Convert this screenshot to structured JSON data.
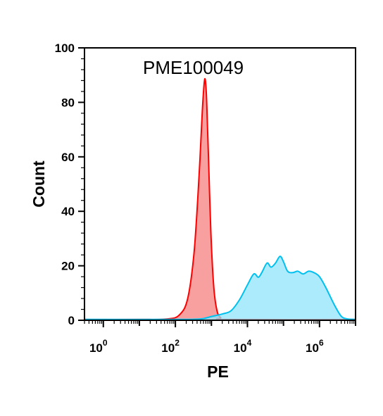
{
  "chart_data": {
    "type": "area",
    "title": "PME100049",
    "xlabel": "PE",
    "ylabel": "Count",
    "x_scale": "log",
    "xlim": [
      0.3,
      10000000
    ],
    "ylim": [
      0,
      100
    ],
    "x_ticks": [
      {
        "value": 1,
        "base": "10",
        "exp": "0"
      },
      {
        "value": 100,
        "base": "10",
        "exp": "2"
      },
      {
        "value": 10000,
        "base": "10",
        "exp": "4"
      },
      {
        "value": 1000000,
        "base": "10",
        "exp": "6"
      }
    ],
    "y_ticks": [
      {
        "value": 0,
        "label": "0"
      },
      {
        "value": 20,
        "label": "20"
      },
      {
        "value": 40,
        "label": "40"
      },
      {
        "value": 60,
        "label": "60"
      },
      {
        "value": 80,
        "label": "80"
      },
      {
        "value": 100,
        "label": "100"
      }
    ],
    "grid": false,
    "series": [
      {
        "color": "#ff0000",
        "fill": "#f57f7f",
        "points": [
          [
            0.3,
            0.3
          ],
          [
            10,
            0.3
          ],
          [
            60,
            0.5
          ],
          [
            130,
            2
          ],
          [
            220,
            8
          ],
          [
            330,
            25
          ],
          [
            450,
            52
          ],
          [
            560,
            77
          ],
          [
            630,
            87
          ],
          [
            680,
            88
          ],
          [
            740,
            80
          ],
          [
            830,
            60
          ],
          [
            960,
            33
          ],
          [
            1150,
            13
          ],
          [
            1400,
            4
          ],
          [
            1800,
            1
          ],
          [
            3000,
            0.3
          ],
          [
            10000000,
            0.3
          ]
        ]
      },
      {
        "color": "#00c0ef",
        "fill": "#8fe4fa",
        "points": [
          [
            0.3,
            0.3
          ],
          [
            100,
            0.3
          ],
          [
            500,
            0.5
          ],
          [
            1000,
            1.4
          ],
          [
            2000,
            2.3
          ],
          [
            3500,
            3.5
          ],
          [
            6000,
            7.5
          ],
          [
            10000,
            13
          ],
          [
            15000,
            17
          ],
          [
            20000,
            15.8
          ],
          [
            25000,
            17.5
          ],
          [
            35000,
            21
          ],
          [
            45000,
            19.5
          ],
          [
            60000,
            21
          ],
          [
            80000,
            23.5
          ],
          [
            100000,
            21.5
          ],
          [
            130000,
            18
          ],
          [
            180000,
            17.5
          ],
          [
            250000,
            18
          ],
          [
            350000,
            17
          ],
          [
            500000,
            18
          ],
          [
            700000,
            17.5
          ],
          [
            1000000,
            16
          ],
          [
            1500000,
            12
          ],
          [
            2500000,
            6
          ],
          [
            4000000,
            1.5
          ],
          [
            6000000,
            0.5
          ],
          [
            10000000,
            0.3
          ]
        ]
      }
    ]
  }
}
